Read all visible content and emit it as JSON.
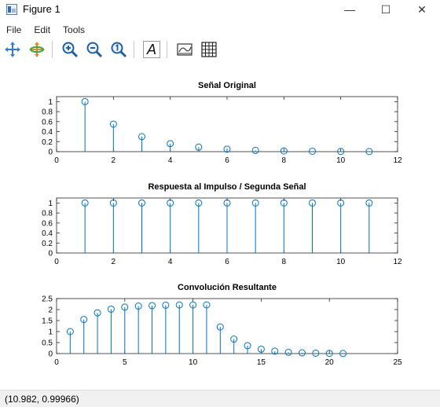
{
  "window": {
    "title": "Figure 1",
    "minimize_glyph": "—",
    "maximize_glyph": "☐",
    "close_glyph": "✕"
  },
  "menu": [
    "File",
    "Edit",
    "Tools"
  ],
  "toolbar": [
    {
      "name": "pan-icon"
    },
    {
      "name": "rotate-icon"
    },
    {
      "name": "zoom-in-icon"
    },
    {
      "name": "zoom-out-icon"
    },
    {
      "name": "zoom-reset-icon"
    },
    {
      "name": "text-icon"
    },
    {
      "name": "axes-toggle-icon"
    },
    {
      "name": "grid-toggle-icon"
    }
  ],
  "status": {
    "coordinates": "(10.982, 0.99966)"
  },
  "colors": {
    "stem": "#0072bd",
    "axis": "#262626"
  },
  "chart_data": [
    {
      "type": "stem",
      "title": "Señal Original",
      "x": [
        1,
        2,
        3,
        4,
        5,
        6,
        7,
        8,
        9,
        10,
        11
      ],
      "y": [
        1,
        0.55,
        0.3,
        0.16,
        0.09,
        0.05,
        0.025,
        0.014,
        0.008,
        0.004,
        0.002
      ],
      "xlim": [
        0,
        12
      ],
      "ylim": [
        0,
        1.1
      ],
      "xticks": [
        0,
        2,
        4,
        6,
        8,
        10,
        12
      ],
      "yticks": [
        0,
        0.2,
        0.4,
        0.6,
        0.8,
        1
      ],
      "ytick_labels": [
        "0",
        "0.2",
        "0.4",
        "0.6",
        "0.8",
        "1"
      ]
    },
    {
      "type": "stem",
      "title": "Respuesta al Impulso / Segunda Señal",
      "x": [
        1,
        2,
        3,
        4,
        5,
        6,
        7,
        8,
        9,
        10,
        11
      ],
      "y": [
        1,
        1,
        1,
        1,
        1,
        1,
        1,
        1,
        1,
        1,
        1
      ],
      "xlim": [
        0,
        12
      ],
      "ylim": [
        0,
        1.1
      ],
      "xticks": [
        0,
        2,
        4,
        6,
        8,
        10,
        12
      ],
      "yticks": [
        0,
        0.2,
        0.4,
        0.6,
        0.8,
        1
      ],
      "ytick_labels": [
        "0",
        "0.2",
        "0.4",
        "0.6",
        "0.8",
        "1"
      ]
    },
    {
      "type": "stem",
      "title": "Convolución Resultante",
      "x": [
        1,
        2,
        3,
        4,
        5,
        6,
        7,
        8,
        9,
        10,
        11,
        12,
        13,
        14,
        15,
        16,
        17,
        18,
        19,
        20,
        21
      ],
      "y": [
        1,
        1.55,
        1.85,
        2.02,
        2.11,
        2.16,
        2.18,
        2.2,
        2.21,
        2.21,
        2.21,
        1.21,
        0.66,
        0.36,
        0.2,
        0.11,
        0.06,
        0.035,
        0.02,
        0.01,
        0.004
      ],
      "xlim": [
        0,
        25
      ],
      "ylim": [
        0,
        2.5
      ],
      "xticks": [
        0,
        5,
        10,
        15,
        20,
        25
      ],
      "yticks": [
        0,
        0.5,
        1,
        1.5,
        2,
        2.5
      ],
      "ytick_labels": [
        "0",
        "0.5",
        "1",
        "1.5",
        "2",
        "2.5"
      ]
    }
  ]
}
